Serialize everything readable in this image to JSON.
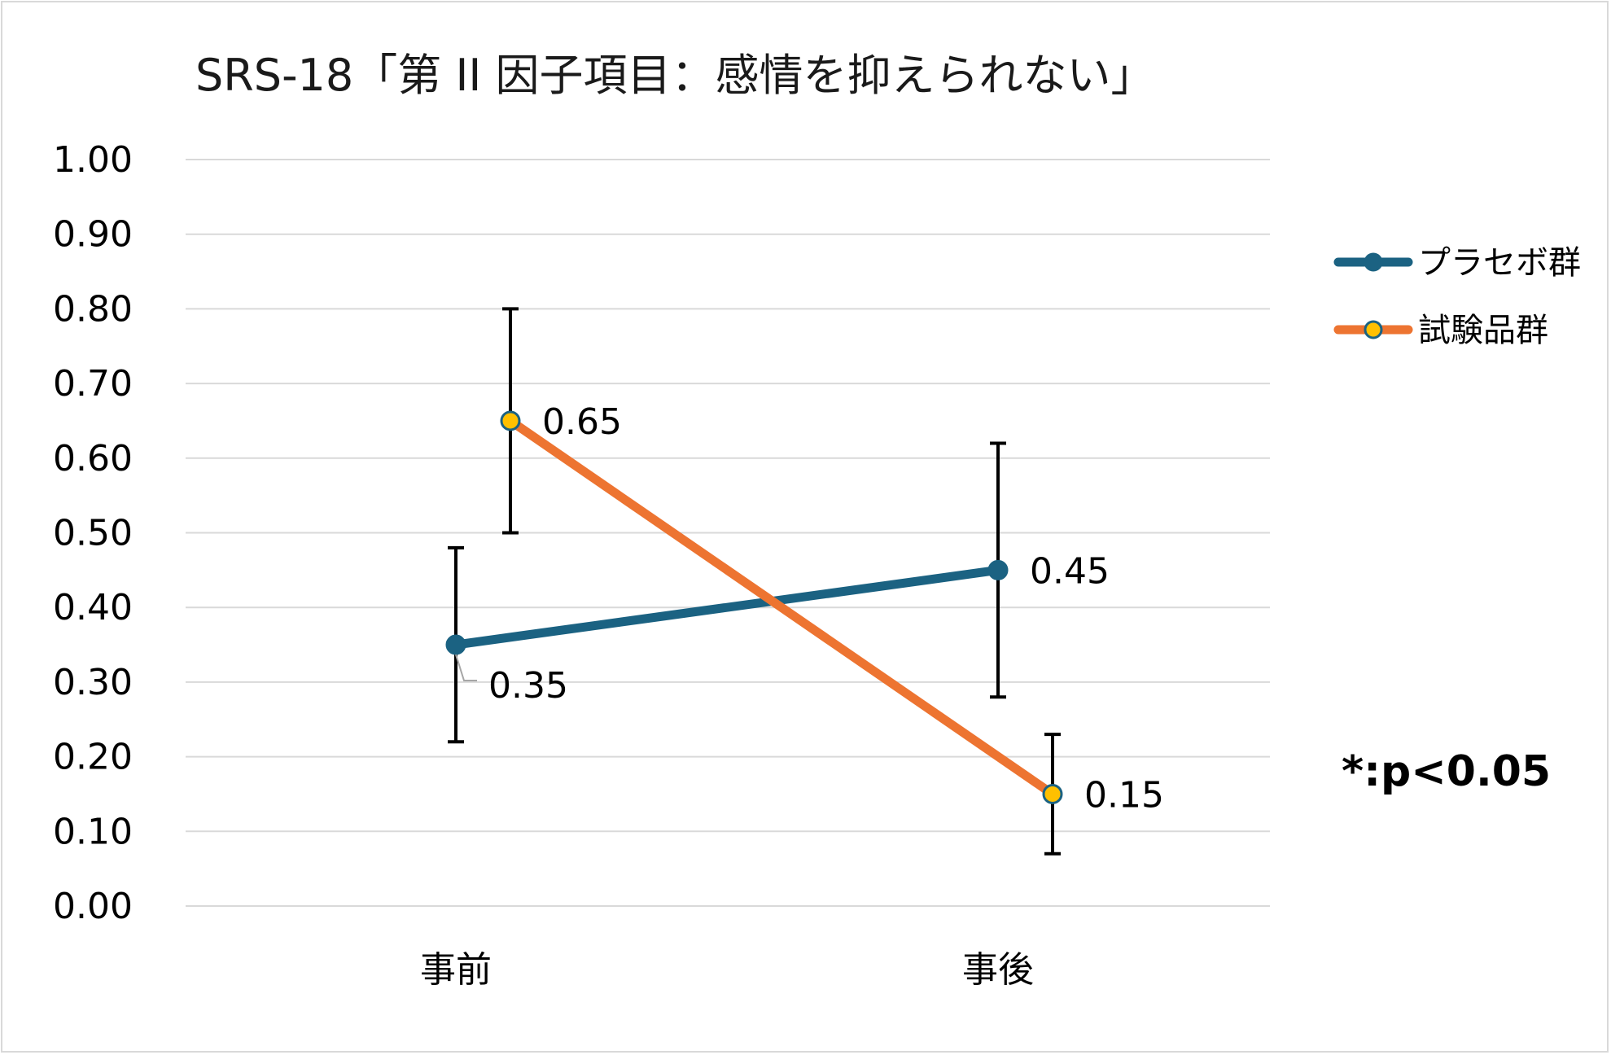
{
  "chart_data": {
    "type": "line",
    "title": "SRS-18「第 II 因子項目：感情を抑えられない」",
    "categories": [
      "事前",
      "事後"
    ],
    "ylim": [
      0,
      1.0
    ],
    "yticks": [
      "0.00",
      "0.10",
      "0.20",
      "0.30",
      "0.40",
      "0.50",
      "0.60",
      "0.70",
      "0.80",
      "0.90",
      "1.00"
    ],
    "grid": true,
    "legend_position": "right",
    "series": [
      {
        "name": "プラセボ群",
        "values": [
          0.35,
          0.45
        ],
        "labels": [
          "0.35",
          "0.45"
        ],
        "error_low": [
          0.22,
          0.28
        ],
        "error_high": [
          0.48,
          0.62
        ],
        "line_color": "#1b6282",
        "marker_fill": "#1b6282",
        "marker_edge": "#1b6282"
      },
      {
        "name": "試験品群",
        "values": [
          0.65,
          0.15
        ],
        "labels": [
          "0.65",
          "0.15"
        ],
        "error_low": [
          0.5,
          0.07
        ],
        "error_high": [
          0.8,
          0.23
        ],
        "line_color": "#ed7431",
        "marker_fill": "#ffc000",
        "marker_edge": "#1b6282"
      }
    ],
    "annotation": "*:p<0.05"
  },
  "colors": {
    "grid": "#d9d9d9",
    "error_bar": "#000000",
    "border": "#d9d9d9"
  }
}
